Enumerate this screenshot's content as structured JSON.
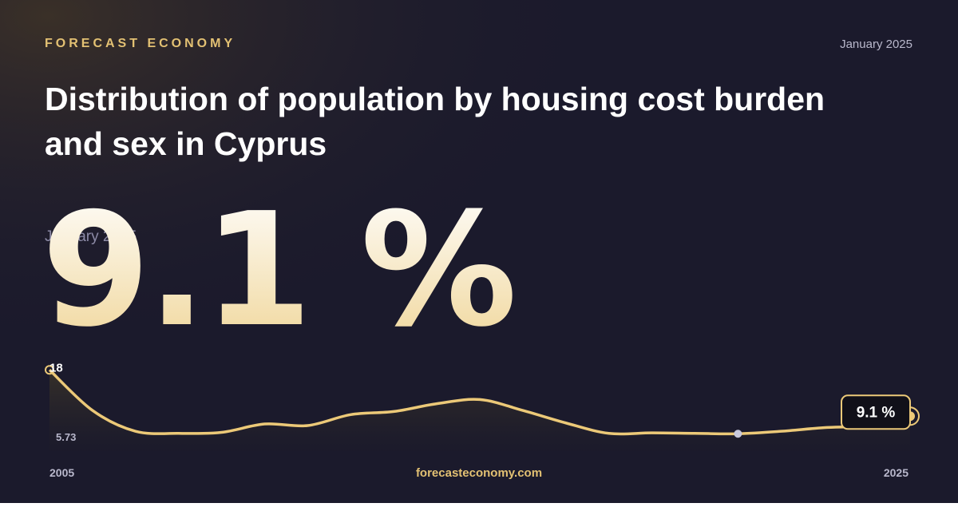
{
  "brand": "FORECAST ECONOMY",
  "date": "January 2025",
  "footer": "forecasteconomy.com",
  "chart_data": {
    "type": "line",
    "title": "Distribution of population by housing cost burden and sex in Cyprus",
    "latest": {
      "value": 9.1,
      "label": "9.1 %"
    },
    "categories": [
      "2005",
      null,
      null,
      null,
      null,
      null,
      null,
      null,
      null,
      null,
      null,
      null,
      null,
      null,
      null,
      null,
      null,
      null,
      null,
      null,
      "2025"
    ],
    "values": [
      18,
      10.2,
      6.2,
      5.8,
      6.0,
      7.6,
      7.3,
      9.4,
      10.0,
      11.5,
      12.3,
      10.2,
      7.8,
      5.8,
      5.9,
      5.8,
      5.73,
      6.2,
      6.9,
      7.3,
      9.1
    ],
    "color": "#ecc978",
    "ylim": [
      5,
      18.5
    ]
  }
}
